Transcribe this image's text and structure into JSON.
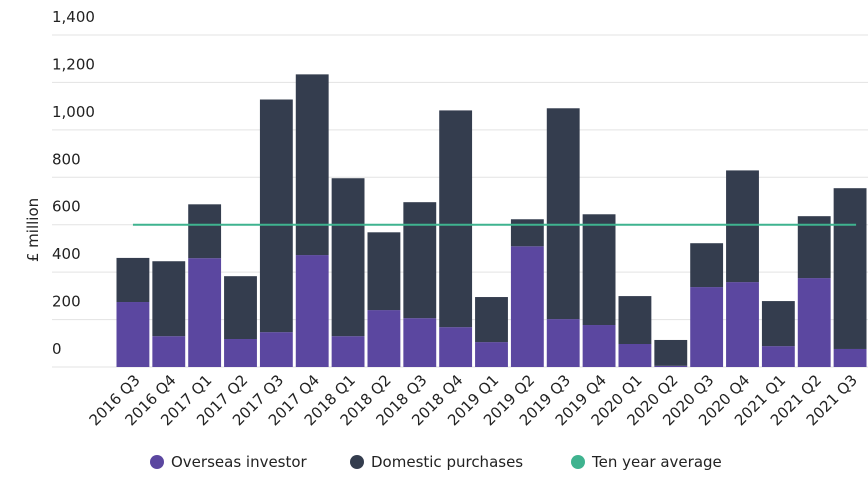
{
  "chart_data": {
    "type": "stacked_bar",
    "y_label": "£ million",
    "categories": [
      "2016 Q3",
      "2016 Q4",
      "2017 Q1",
      "2017 Q2",
      "2017 Q3",
      "2017 Q4",
      "2018 Q1",
      "2018 Q2",
      "2018 Q3",
      "2018 Q4",
      "2019 Q1",
      "2019 Q2",
      "2019 Q3",
      "2019 Q4",
      "2020 Q1",
      "2020 Q2",
      "2020 Q3",
      "2020 Q4",
      "2021 Q1",
      "2021 Q2",
      "2021 Q3"
    ],
    "series": [
      {
        "name": "Overseas investor",
        "color": "#5b47a0",
        "values": [
          274,
          130,
          459,
          118,
          147,
          472,
          130,
          240,
          206,
          168,
          105,
          509,
          202,
          177,
          97,
          5,
          337,
          358,
          88,
          375,
          76
        ]
      },
      {
        "name": "Domestic purchases",
        "color": "#343d4e",
        "values": [
          186,
          316,
          227,
          265,
          981,
          762,
          666,
          328,
          489,
          914,
          190,
          114,
          889,
          467,
          202,
          109,
          185,
          471,
          190,
          261,
          678
        ]
      }
    ],
    "average": {
      "name": "Ten year average",
      "color": "#3fb38f",
      "value": 600
    },
    "ylim": [
      0,
      1400
    ],
    "yticks": [
      0,
      200,
      400,
      600,
      800,
      {
        "value": 1000,
        "label": "1,000"
      },
      {
        "value": 1200,
        "label": "1,200"
      },
      {
        "value": 1400,
        "label": "1,400"
      }
    ],
    "grid": true
  }
}
